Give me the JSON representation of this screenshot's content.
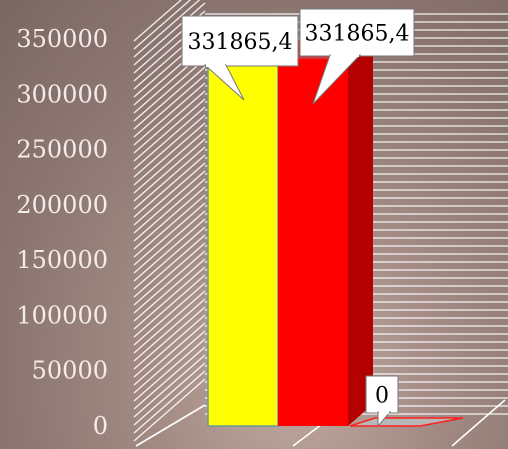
{
  "chart_data": {
    "type": "bar",
    "categories": [
      "",
      "",
      ""
    ],
    "values": [
      331865.4,
      331865.4,
      0
    ],
    "value_labels": [
      "331865,4",
      "331865,4",
      "0"
    ],
    "colors": [
      "#ffff00",
      "#ff0000",
      "#ff2020"
    ],
    "side_colors": [
      "#c8c800",
      "#b30000",
      "#b30000"
    ],
    "ylim": [
      0,
      350000
    ],
    "yticks": [
      "0",
      "50000",
      "100000",
      "150000",
      "200000",
      "250000",
      "300000",
      "350000"
    ],
    "ytick_values": [
      0,
      50000,
      100000,
      150000,
      200000,
      250000,
      300000,
      350000
    ],
    "title": "",
    "xlabel": "",
    "ylabel": "",
    "three_d": true,
    "gridlines": "hatched side and back walls",
    "legend": "none"
  }
}
